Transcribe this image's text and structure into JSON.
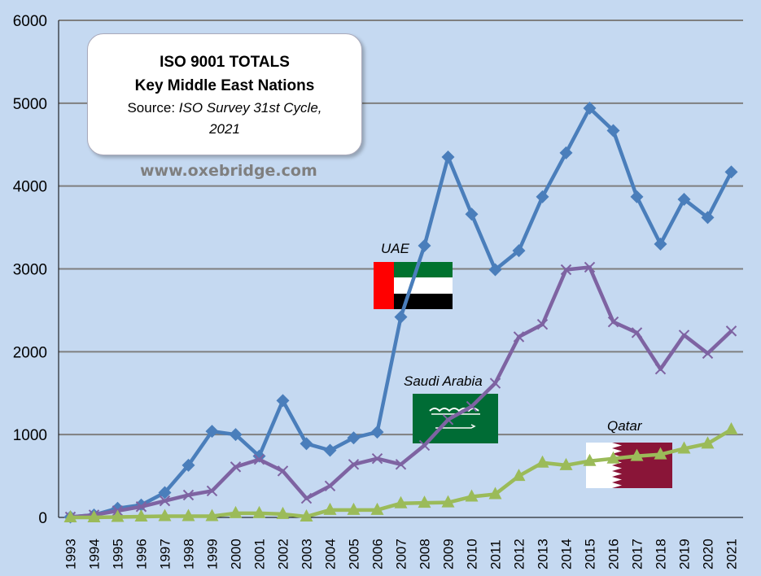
{
  "title_box": {
    "line1": "ISO 9001 TOTALS",
    "line2": "Key Middle East Nations",
    "source_prefix": "Source: ",
    "source_italic": "ISO Survey 31st Cycle,",
    "source_line2": "2021"
  },
  "website": "www.oxebridge.com",
  "chart_data": {
    "type": "line",
    "title": "ISO 9001 TOTALS Key Middle East Nations",
    "xlabel": "",
    "ylabel": "",
    "ylim": [
      0,
      6000
    ],
    "yticks": [
      "0",
      "1000",
      "2000",
      "3000",
      "4000",
      "5000",
      "6000"
    ],
    "categories": [
      "1993",
      "1994",
      "1995",
      "1996",
      "1997",
      "1998",
      "1999",
      "2000",
      "2001",
      "2002",
      "2003",
      "2004",
      "2005",
      "2006",
      "2007",
      "2008",
      "2009",
      "2010",
      "2011",
      "2012",
      "2013",
      "2014",
      "2015",
      "2016",
      "2017",
      "2018",
      "2019",
      "2020",
      "2021"
    ],
    "series": [
      {
        "name": "UAE",
        "color": "#4a7ebb",
        "marker": "diamond",
        "values": [
          5,
          30,
          110,
          150,
          300,
          630,
          1040,
          1000,
          740,
          1410,
          890,
          810,
          960,
          1030,
          2420,
          3280,
          4350,
          3660,
          2990,
          3220,
          3870,
          4400,
          4940,
          4670,
          3870,
          3300,
          3840,
          3620,
          4170
        ]
      },
      {
        "name": "Saudi Arabia",
        "color": "#7e63a2",
        "marker": "x",
        "values": [
          5,
          30,
          80,
          130,
          200,
          270,
          320,
          610,
          700,
          560,
          230,
          380,
          640,
          710,
          640,
          870,
          1180,
          1340,
          1620,
          2180,
          2330,
          2990,
          3020,
          2360,
          2230,
          1790,
          2200,
          1980,
          2250
        ]
      },
      {
        "name": "Qatar",
        "color": "#9bbb59",
        "marker": "triangle",
        "values": [
          0,
          0,
          5,
          10,
          15,
          15,
          15,
          50,
          50,
          40,
          10,
          90,
          90,
          90,
          170,
          175,
          180,
          250,
          280,
          500,
          660,
          630,
          680,
          710,
          740,
          760,
          830,
          890,
          1060
        ]
      }
    ]
  },
  "flags": {
    "uae_label": "UAE",
    "saudi_label": "Saudi Arabia",
    "qatar_label": "Qatar"
  },
  "colors": {
    "background": "#c5d9f1",
    "grid": "#7f7f7f",
    "uae_red": "#ff0000",
    "uae_green": "#00732f",
    "saudi_green": "#006c35",
    "qatar_maroon": "#8a1538"
  }
}
